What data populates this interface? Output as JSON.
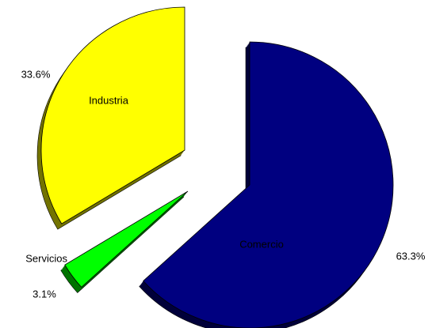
{
  "chart_data": {
    "type": "pie",
    "categories": [
      "Comercio",
      "Servicios",
      "Industria"
    ],
    "values": [
      63.3,
      3.1,
      33.6
    ],
    "value_labels": [
      "63.3%",
      "3.1%",
      "33.6%"
    ],
    "colors": [
      "#000080",
      "#00ff00",
      "#ffff00"
    ]
  }
}
